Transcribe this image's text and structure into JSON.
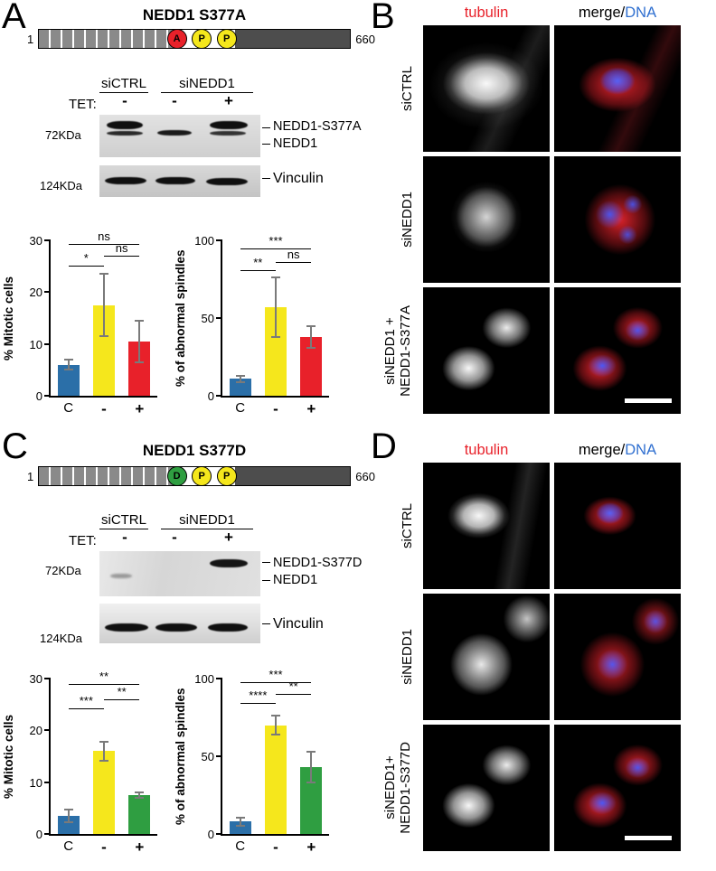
{
  "figure": {
    "colors": {
      "bar_blue": "#2b6fa8",
      "bar_yellow": "#f5e71c",
      "bar_red": "#e8212a",
      "bar_green": "#2f9e41",
      "tubulin_label": "#e8212a",
      "dna_label": "#2f6fd0"
    },
    "panels": {
      "A": {
        "label": "A",
        "title": "NEDD1 S377A",
        "schematic": {
          "start": "1",
          "end": "660",
          "residues": [
            {
              "letter": "A",
              "color": "#e8212a"
            },
            {
              "letter": "P",
              "color": "#f5e71c"
            },
            {
              "letter": "P",
              "color": "#f5e71c"
            }
          ]
        },
        "blot": {
          "group_labels": [
            "siCTRL",
            "siNEDD1"
          ],
          "tet_label": "TET:",
          "tet_values": [
            "-",
            "-",
            "+"
          ],
          "marker_top": "72KDa",
          "marker_bottom": "124KDa",
          "band_labels": [
            "NEDD1-S377A",
            "NEDD1"
          ],
          "loading_control": "Vinculin"
        }
      },
      "B": {
        "label": "B",
        "col_headers": {
          "tubulin": "tubulin",
          "merge": "merge/",
          "dna": "DNA"
        },
        "row_labels": [
          "siCTRL",
          "siNEDD1"
        ],
        "row3_labels": [
          "siNEDD1 +",
          "NEDD1-S377A"
        ]
      },
      "C": {
        "label": "C",
        "title": "NEDD1 S377D",
        "schematic": {
          "start": "1",
          "end": "660",
          "residues": [
            {
              "letter": "D",
              "color": "#2f9e41"
            },
            {
              "letter": "P",
              "color": "#f5e71c"
            },
            {
              "letter": "P",
              "color": "#f5e71c"
            }
          ]
        },
        "blot": {
          "group_labels": [
            "siCTRL",
            "siNEDD1"
          ],
          "tet_label": "TET:",
          "tet_values": [
            "-",
            "-",
            "+"
          ],
          "marker_top": "72KDa",
          "marker_bottom": "124KDa",
          "band_labels": [
            "NEDD1-S377D",
            "NEDD1"
          ],
          "loading_control": "Vinculin"
        }
      },
      "D": {
        "label": "D",
        "col_headers": {
          "tubulin": "tubulin",
          "merge": "merge/",
          "dna": "DNA"
        },
        "row_labels": [
          "siCTRL",
          "siNEDD1"
        ],
        "row3_labels": [
          "siNEDD1+",
          "NEDD1-S377D"
        ]
      }
    }
  },
  "chart_data": [
    {
      "type": "bar",
      "id": "mitotic-cells-S377A",
      "ylabel": "% Mitotic cells",
      "categories": [
        "C",
        "-",
        "+"
      ],
      "values": [
        6,
        17.5,
        10.5
      ],
      "errors": [
        1,
        6,
        4
      ],
      "colors": [
        "#2b6fa8",
        "#f5e71c",
        "#e8212a"
      ],
      "ylim": [
        0,
        30
      ],
      "yticks": [
        0,
        10,
        20,
        30
      ],
      "significance": [
        {
          "from": 0,
          "to": 1,
          "y": 25,
          "label": "*"
        },
        {
          "from": 1,
          "to": 2,
          "y": 26.8,
          "label": "ns"
        },
        {
          "from": 0,
          "to": 2,
          "y": 29.2,
          "label": "ns"
        }
      ]
    },
    {
      "type": "bar",
      "id": "abnormal-spindles-S377A",
      "ylabel": "% of abnormal spindles",
      "categories": [
        "C",
        "-",
        "+"
      ],
      "values": [
        11,
        57,
        38
      ],
      "errors": [
        2,
        19,
        7
      ],
      "colors": [
        "#2b6fa8",
        "#f5e71c",
        "#e8212a"
      ],
      "ylim": [
        0,
        100
      ],
      "yticks": [
        0,
        50,
        100
      ],
      "significance": [
        {
          "from": 0,
          "to": 1,
          "y": 80,
          "label": "**"
        },
        {
          "from": 1,
          "to": 2,
          "y": 85.5,
          "label": "ns"
        },
        {
          "from": 0,
          "to": 2,
          "y": 94,
          "label": "***"
        }
      ]
    },
    {
      "type": "bar",
      "id": "mitotic-cells-S377D",
      "ylabel": "% Mitotic cells",
      "categories": [
        "C",
        "-",
        "+"
      ],
      "values": [
        3.5,
        16,
        7.5
      ],
      "errors": [
        1.2,
        1.8,
        0.5
      ],
      "colors": [
        "#2b6fa8",
        "#f5e71c",
        "#2f9e41"
      ],
      "ylim": [
        0,
        30
      ],
      "yticks": [
        0,
        10,
        20,
        30
      ],
      "significance": [
        {
          "from": 0,
          "to": 1,
          "y": 24,
          "label": "***"
        },
        {
          "from": 1,
          "to": 2,
          "y": 25.8,
          "label": "**"
        },
        {
          "from": 0,
          "to": 2,
          "y": 28.8,
          "label": "**"
        }
      ]
    },
    {
      "type": "bar",
      "id": "abnormal-spindles-S377D",
      "ylabel": "% of abnormal spindles",
      "categories": [
        "C",
        "-",
        "+"
      ],
      "values": [
        8,
        70,
        43
      ],
      "errors": [
        2.5,
        6,
        10
      ],
      "colors": [
        "#2b6fa8",
        "#f5e71c",
        "#2f9e41"
      ],
      "ylim": [
        0,
        100
      ],
      "yticks": [
        0,
        50,
        100
      ],
      "significance": [
        {
          "from": 0,
          "to": 1,
          "y": 84,
          "label": "****"
        },
        {
          "from": 1,
          "to": 2,
          "y": 89.5,
          "label": "**"
        },
        {
          "from": 0,
          "to": 2,
          "y": 97,
          "label": "***"
        }
      ]
    }
  ]
}
